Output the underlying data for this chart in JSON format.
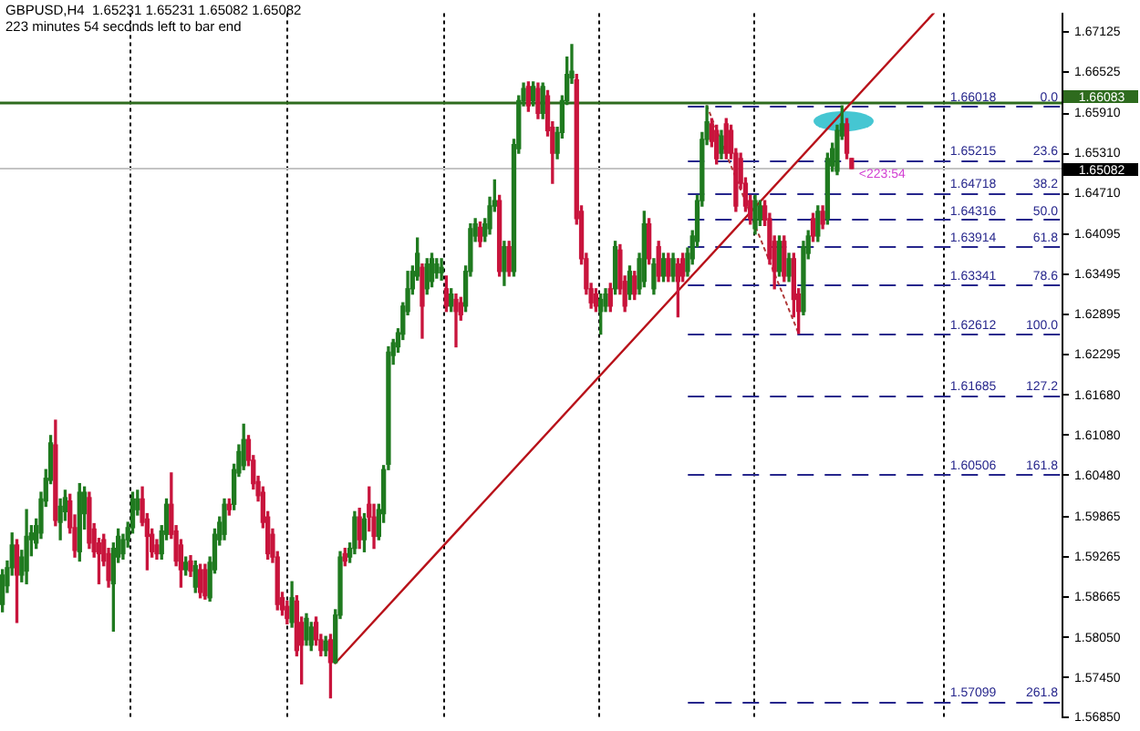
{
  "chart_data": {
    "type": "candlestick",
    "title": "GBPUSD,H4  1.65231 1.65231 1.65082 1.65082",
    "subtitle": "223 minutes 54 seconds left to bar end",
    "categories": [
      null,
      null,
      null,
      null,
      null,
      null,
      null,
      null,
      null,
      null,
      null,
      null,
      null,
      null,
      null,
      null,
      null,
      null,
      null,
      null,
      null,
      null,
      null,
      null,
      null,
      null,
      null,
      null,
      null,
      null,
      null,
      null,
      null,
      null,
      null,
      null,
      null,
      null,
      null,
      null,
      null,
      null,
      null,
      null,
      null,
      null,
      null,
      null,
      null,
      null,
      null,
      null,
      null,
      null,
      null,
      null,
      null,
      null,
      null,
      null,
      null,
      null,
      null,
      null,
      null,
      null,
      null,
      null,
      null,
      null,
      null,
      null,
      null,
      null,
      null,
      null,
      null,
      null,
      null,
      null,
      null,
      null,
      null,
      null,
      null,
      null,
      null,
      null,
      null,
      null,
      null,
      null,
      null,
      null,
      null,
      null,
      null,
      null,
      null,
      null,
      null,
      null,
      null,
      null,
      null,
      null,
      null,
      null,
      null,
      null,
      null,
      null,
      null,
      null,
      null,
      null,
      null,
      null,
      null,
      null,
      null,
      null,
      null,
      null,
      null,
      null,
      null,
      null,
      null,
      null,
      null,
      null,
      null,
      null,
      null,
      null,
      null,
      null,
      null,
      null,
      null,
      null,
      null,
      null,
      null,
      null,
      null,
      null,
      null,
      null,
      null,
      null,
      null,
      null,
      null,
      null,
      null,
      null,
      null,
      null,
      null,
      null,
      null,
      null,
      null,
      null,
      null,
      null,
      null,
      null,
      null,
      null,
      null,
      null,
      null,
      null,
      null,
      null,
      null,
      null,
      null,
      null,
      null,
      null,
      null,
      null,
      null,
      null,
      null,
      null,
      null,
      null,
      null,
      null,
      null,
      null,
      null,
      null,
      null,
      null,
      null,
      null,
      null,
      null,
      null,
      null,
      null,
      null,
      null,
      null,
      null,
      null,
      null,
      null,
      null,
      null,
      null,
      null,
      null,
      null
    ],
    "ohlc": [
      [
        1.5855,
        1.5907,
        1.5844,
        1.5899
      ],
      [
        1.5883,
        1.592,
        1.5873,
        1.591
      ],
      [
        1.591,
        1.5962,
        1.5899,
        1.5944
      ],
      [
        1.5944,
        1.5952,
        1.5828,
        1.5899
      ],
      [
        1.5899,
        1.5936,
        1.5889,
        1.5926
      ],
      [
        1.5905,
        1.5997,
        1.5886,
        1.5957
      ],
      [
        1.5952,
        1.5973,
        1.5928,
        1.5962
      ],
      [
        1.5947,
        1.5983,
        1.5939,
        1.5973
      ],
      [
        1.5962,
        1.6023,
        1.5954,
        1.6013
      ],
      [
        1.601,
        1.6057,
        1.6002,
        1.6044
      ],
      [
        1.6041,
        1.6108,
        1.6036,
        1.6097
      ],
      [
        1.6094,
        1.6131,
        1.5973,
        1.5981
      ],
      [
        1.5978,
        1.6013,
        1.5952,
        1.6002
      ],
      [
        1.5994,
        1.6026,
        1.5981,
        1.6015
      ],
      [
        1.601,
        1.602,
        1.5962,
        1.597
      ],
      [
        1.597,
        1.5989,
        1.5926,
        1.5936
      ],
      [
        1.5934,
        1.6036,
        1.592,
        1.6023
      ],
      [
        1.5991,
        1.6031,
        1.5968,
        1.6023
      ],
      [
        1.6015,
        1.6023,
        1.5939,
        1.5947
      ],
      [
        1.5968,
        1.5976,
        1.5926,
        1.5934
      ],
      [
        1.5947,
        1.5954,
        1.5886,
        1.5931
      ],
      [
        1.5952,
        1.596,
        1.5913,
        1.592
      ],
      [
        1.5931,
        1.5939,
        1.5881,
        1.5891
      ],
      [
        1.5886,
        1.5947,
        1.5815,
        1.5939
      ],
      [
        1.5926,
        1.5968,
        1.5918,
        1.5957
      ],
      [
        1.5931,
        1.596,
        1.5923,
        1.5952
      ],
      [
        1.5952,
        1.5978,
        1.5941,
        1.597
      ],
      [
        1.597,
        1.6023,
        1.5962,
        1.6013
      ],
      [
        1.5997,
        1.6026,
        1.5989,
        1.6013
      ],
      [
        1.6013,
        1.6031,
        1.5973,
        1.5978
      ],
      [
        1.5983,
        1.5991,
        1.5907,
        1.5957
      ],
      [
        1.596,
        1.5968,
        1.5926,
        1.5934
      ],
      [
        1.5944,
        1.5952,
        1.5923,
        1.5931
      ],
      [
        1.5931,
        1.5973,
        1.5923,
        1.5965
      ],
      [
        1.596,
        1.6013,
        1.5952,
        1.6005
      ],
      [
        1.6005,
        1.6052,
        1.5954,
        1.596
      ],
      [
        1.5965,
        1.5973,
        1.5913,
        1.592
      ],
      [
        1.5944,
        1.5952,
        1.5881,
        1.5907
      ],
      [
        1.5907,
        1.5926,
        1.5899,
        1.5918
      ],
      [
        1.592,
        1.5928,
        1.5897,
        1.5905
      ],
      [
        1.5881,
        1.592,
        1.5873,
        1.5913
      ],
      [
        1.5907,
        1.5915,
        1.5865,
        1.5873
      ],
      [
        1.5907,
        1.5915,
        1.5863,
        1.5868
      ],
      [
        1.5865,
        1.5926,
        1.586,
        1.5918
      ],
      [
        1.5907,
        1.5968,
        1.5902,
        1.596
      ],
      [
        1.5952,
        1.5986,
        1.5944,
        1.5978
      ],
      [
        1.596,
        1.6013,
        1.5952,
        1.6005
      ],
      [
        1.6005,
        1.6013,
        1.5989,
        1.5997
      ],
      [
        1.6005,
        1.6065,
        1.5997,
        1.6057
      ],
      [
        1.6052,
        1.6094,
        1.6047,
        1.6084
      ],
      [
        1.6063,
        1.6125,
        1.6057,
        1.6102
      ],
      [
        1.6102,
        1.6108,
        1.6063,
        1.6071
      ],
      [
        1.6071,
        1.6078,
        1.6028,
        1.6036
      ],
      [
        1.6039,
        1.6047,
        1.601,
        1.6018
      ],
      [
        1.6023,
        1.6031,
        1.597,
        1.5978
      ],
      [
        1.5986,
        1.5994,
        1.5923,
        1.5931
      ],
      [
        1.596,
        1.5968,
        1.5918,
        1.5926
      ],
      [
        1.5926,
        1.5934,
        1.5847,
        1.5855
      ],
      [
        1.5865,
        1.5873,
        1.5839,
        1.5847
      ],
      [
        1.5852,
        1.586,
        1.5826,
        1.5834
      ],
      [
        1.5828,
        1.5889,
        1.5821,
        1.5865
      ],
      [
        1.586,
        1.5868,
        1.5778,
        1.5786
      ],
      [
        1.5828,
        1.5836,
        1.5736,
        1.5794
      ],
      [
        1.5802,
        1.5841,
        1.5794,
        1.5834
      ],
      [
        1.5794,
        1.5828,
        1.5786,
        1.5821
      ],
      [
        1.5828,
        1.5836,
        1.5794,
        1.5802
      ],
      [
        1.5802,
        1.581,
        1.5778,
        1.5786
      ],
      [
        1.5786,
        1.5807,
        1.5778,
        1.58
      ],
      [
        1.5802,
        1.581,
        1.5715,
        1.5768
      ],
      [
        1.5768,
        1.5847,
        1.5767,
        1.5839
      ],
      [
        1.5839,
        1.5934,
        1.5834,
        1.5926
      ],
      [
        1.5931,
        1.5939,
        1.5913,
        1.592
      ],
      [
        1.5926,
        1.5947,
        1.5918,
        1.5939
      ],
      [
        1.5939,
        1.5994,
        1.5931,
        1.5986
      ],
      [
        1.5986,
        1.5999,
        1.5939,
        1.5952
      ],
      [
        1.5952,
        1.5991,
        1.5934,
        1.5983
      ],
      [
        1.6005,
        1.6031,
        1.5965,
        1.5986
      ],
      [
        1.5986,
        1.6005,
        1.5939,
        1.5957
      ],
      [
        1.5957,
        1.6005,
        1.5952,
        1.5997
      ],
      [
        1.5991,
        1.6063,
        1.5978,
        1.6057
      ],
      [
        1.6065,
        1.6241,
        1.6057,
        1.6233
      ],
      [
        1.6228,
        1.6252,
        1.6215,
        1.6247
      ],
      [
        1.6241,
        1.6268,
        1.6233,
        1.6262
      ],
      [
        1.626,
        1.6307,
        1.6252,
        1.6302
      ],
      [
        1.6294,
        1.6354,
        1.6289,
        1.6328
      ],
      [
        1.6328,
        1.6362,
        1.632,
        1.6354
      ],
      [
        1.6347,
        1.6404,
        1.6341,
        1.6381
      ],
      [
        1.636,
        1.6365,
        1.6254,
        1.6302
      ],
      [
        1.6328,
        1.6373,
        1.632,
        1.6365
      ],
      [
        1.6339,
        1.6381,
        1.6331,
        1.6373
      ],
      [
        1.6352,
        1.6373,
        1.6344,
        1.6365
      ],
      [
        1.6352,
        1.6373,
        1.6341,
        1.636
      ],
      [
        1.6328,
        1.6347,
        1.6294,
        1.6302
      ],
      [
        1.6302,
        1.6328,
        1.6294,
        1.632
      ],
      [
        1.6312,
        1.632,
        1.6241,
        1.6294
      ],
      [
        1.6307,
        1.6315,
        1.6281,
        1.6289
      ],
      [
        1.6302,
        1.6362,
        1.6294,
        1.6354
      ],
      [
        1.6354,
        1.6425,
        1.6347,
        1.6418
      ],
      [
        1.6407,
        1.6433,
        1.6399,
        1.6425
      ],
      [
        1.642,
        1.6428,
        1.6391,
        1.6399
      ],
      [
        1.6407,
        1.6433,
        1.6399,
        1.6425
      ],
      [
        1.6418,
        1.6465,
        1.641,
        1.6452
      ],
      [
        1.6452,
        1.6491,
        1.6444,
        1.646
      ],
      [
        1.646,
        1.6468,
        1.6347,
        1.6354
      ],
      [
        1.6354,
        1.6399,
        1.6333,
        1.6391
      ],
      [
        1.6391,
        1.6399,
        1.6347,
        1.6354
      ],
      [
        1.6354,
        1.6552,
        1.6347,
        1.6544
      ],
      [
        1.6538,
        1.6617,
        1.6531,
        1.661
      ],
      [
        1.661,
        1.6636,
        1.6602,
        1.6628
      ],
      [
        1.6631,
        1.6638,
        1.6594,
        1.6602
      ],
      [
        1.661,
        1.6638,
        1.6602,
        1.6631
      ],
      [
        1.6628,
        1.6636,
        1.6583,
        1.6591
      ],
      [
        1.6591,
        1.6636,
        1.6583,
        1.6631
      ],
      [
        1.6617,
        1.6625,
        1.6557,
        1.6565
      ],
      [
        1.657,
        1.6578,
        1.6486,
        1.6531
      ],
      [
        1.6531,
        1.657,
        1.6523,
        1.6562
      ],
      [
        1.6562,
        1.6617,
        1.6554,
        1.661
      ],
      [
        1.661,
        1.6675,
        1.6604,
        1.6649
      ],
      [
        1.6644,
        1.6694,
        1.6636,
        1.6654
      ],
      [
        1.6641,
        1.6649,
        1.6425,
        1.6433
      ],
      [
        1.6444,
        1.6452,
        1.6365,
        1.6373
      ],
      [
        1.6373,
        1.6381,
        1.632,
        1.6328
      ],
      [
        1.6328,
        1.6336,
        1.6299,
        1.6307
      ],
      [
        1.632,
        1.6328,
        1.6294,
        1.6302
      ],
      [
        1.6294,
        1.632,
        1.626,
        1.6312
      ],
      [
        1.6302,
        1.6328,
        1.6294,
        1.632
      ],
      [
        1.6328,
        1.6336,
        1.6294,
        1.6302
      ],
      [
        1.6328,
        1.6399,
        1.632,
        1.6391
      ],
      [
        1.6386,
        1.6394,
        1.632,
        1.6328
      ],
      [
        1.6339,
        1.6347,
        1.6294,
        1.6302
      ],
      [
        1.632,
        1.6362,
        1.6312,
        1.6354
      ],
      [
        1.6347,
        1.6354,
        1.6312,
        1.632
      ],
      [
        1.6328,
        1.6381,
        1.632,
        1.6373
      ],
      [
        1.6339,
        1.6444,
        1.6331,
        1.6425
      ],
      [
        1.6425,
        1.6433,
        1.6365,
        1.6373
      ],
      [
        1.6328,
        1.6373,
        1.632,
        1.6365
      ],
      [
        1.6391,
        1.6399,
        1.6339,
        1.6347
      ],
      [
        1.6347,
        1.6381,
        1.6339,
        1.6373
      ],
      [
        1.6373,
        1.6381,
        1.6339,
        1.6347
      ],
      [
        1.6347,
        1.6381,
        1.6339,
        1.6373
      ],
      [
        1.6365,
        1.6373,
        1.6286,
        1.6339
      ],
      [
        1.6373,
        1.6381,
        1.6339,
        1.6347
      ],
      [
        1.6354,
        1.6389,
        1.6347,
        1.6381
      ],
      [
        1.6373,
        1.6415,
        1.6365,
        1.6407
      ],
      [
        1.6399,
        1.6468,
        1.6391,
        1.646
      ],
      [
        1.646,
        1.6562,
        1.6452,
        1.6552
      ],
      [
        1.6552,
        1.6602,
        1.6544,
        1.6578
      ],
      [
        1.6575,
        1.6583,
        1.6541,
        1.6549
      ],
      [
        1.6565,
        1.6573,
        1.6515,
        1.6523
      ],
      [
        1.6531,
        1.6565,
        1.6523,
        1.6557
      ],
      [
        1.6575,
        1.6583,
        1.6523,
        1.6531
      ],
      [
        1.6565,
        1.6573,
        1.6523,
        1.6531
      ],
      [
        1.6531,
        1.6538,
        1.6444,
        1.6452
      ],
      [
        1.6523,
        1.6531,
        1.6478,
        1.6486
      ],
      [
        1.6486,
        1.6494,
        1.6444,
        1.6452
      ],
      [
        1.646,
        1.6468,
        1.6425,
        1.6433
      ],
      [
        1.6418,
        1.6468,
        1.641,
        1.646
      ],
      [
        1.6431,
        1.646,
        1.6423,
        1.6452
      ],
      [
        1.6452,
        1.646,
        1.6423,
        1.6431
      ],
      [
        1.6433,
        1.6441,
        1.6365,
        1.6373
      ],
      [
        1.6399,
        1.6407,
        1.6328,
        1.6354
      ],
      [
        1.6354,
        1.6407,
        1.6347,
        1.6399
      ],
      [
        1.6399,
        1.6407,
        1.6339,
        1.6347
      ],
      [
        1.6347,
        1.6381,
        1.6339,
        1.6373
      ],
      [
        1.6373,
        1.6381,
        1.6286,
        1.6312
      ],
      [
        1.632,
        1.6328,
        1.6261,
        1.6294
      ],
      [
        1.6294,
        1.6399,
        1.6289,
        1.6391
      ],
      [
        1.6381,
        1.6415,
        1.6373,
        1.6407
      ],
      [
        1.6433,
        1.6441,
        1.6399,
        1.6407
      ],
      [
        1.6407,
        1.6452,
        1.6399,
        1.6444
      ],
      [
        1.6444,
        1.6452,
        1.6418,
        1.6425
      ],
      [
        1.6433,
        1.6531,
        1.6425,
        1.6523
      ],
      [
        1.6512,
        1.6546,
        1.6504,
        1.6538
      ],
      [
        1.6504,
        1.6573,
        1.6499,
        1.6565
      ],
      [
        1.6557,
        1.6602,
        1.6552,
        1.6575
      ],
      [
        1.6575,
        1.6583,
        1.6523,
        1.6531
      ],
      [
        1.65231,
        1.65231,
        1.65082,
        1.65082
      ],
      null,
      null,
      null,
      null,
      null,
      null,
      null,
      null,
      null,
      null,
      null,
      null,
      null,
      null,
      null,
      null,
      null,
      null,
      null,
      null,
      null,
      null,
      null,
      null,
      null,
      null,
      null,
      null,
      null,
      null,
      null,
      null,
      null,
      null,
      null,
      null,
      null,
      null,
      null,
      null,
      null,
      null,
      null
    ],
    "colors": [
      "#1f7a1f",
      "#1f7a1f",
      "#1f7a1f",
      "#c8143c",
      "#1f7a1f",
      "#1f7a1f",
      "#1f7a1f",
      "#1f7a1f",
      "#1f7a1f",
      "#1f7a1f",
      "#1f7a1f",
      "#c8143c",
      "#1f7a1f",
      "#1f7a1f",
      "#c8143c",
      "#c8143c",
      "#1f7a1f",
      "#1f7a1f",
      "#c8143c",
      "#c8143c",
      "#c8143c",
      "#c8143c",
      "#c8143c",
      "#1f7a1f",
      "#1f7a1f",
      "#1f7a1f",
      "#1f7a1f",
      "#1f7a1f",
      "#1f7a1f",
      "#c8143c",
      "#c8143c",
      "#c8143c",
      "#c8143c",
      "#1f7a1f",
      "#1f7a1f",
      "#c8143c",
      "#c8143c",
      "#c8143c",
      "#1f7a1f",
      "#c8143c",
      "#1f7a1f",
      "#c8143c",
      "#c8143c",
      "#1f7a1f",
      "#1f7a1f",
      "#1f7a1f",
      "#1f7a1f",
      "#c8143c",
      "#1f7a1f",
      "#1f7a1f",
      "#1f7a1f",
      "#c8143c",
      "#c8143c",
      "#c8143c",
      "#c8143c",
      "#c8143c",
      "#c8143c",
      "#c8143c",
      "#c8143c",
      "#c8143c",
      "#1f7a1f",
      "#c8143c",
      "#c8143c",
      "#1f7a1f",
      "#1f7a1f",
      "#c8143c",
      "#c8143c",
      "#1f7a1f",
      "#c8143c",
      "#1f7a1f",
      "#1f7a1f",
      "#c8143c",
      "#1f7a1f",
      "#1f7a1f",
      "#c8143c",
      "#1f7a1f",
      "#c8143c",
      "#c8143c",
      "#1f7a1f",
      "#1f7a1f",
      "#1f7a1f",
      "#1f7a1f",
      "#1f7a1f",
      "#1f7a1f",
      "#1f7a1f",
      "#1f7a1f",
      "#1f7a1f",
      "#c8143c",
      "#1f7a1f",
      "#1f7a1f",
      "#1f7a1f",
      "#1f7a1f",
      "#c8143c",
      "#1f7a1f",
      "#c8143c",
      "#c8143c",
      "#1f7a1f",
      "#1f7a1f",
      "#1f7a1f",
      "#c8143c",
      "#1f7a1f",
      "#1f7a1f",
      "#1f7a1f",
      "#c8143c",
      "#1f7a1f",
      "#c8143c",
      "#1f7a1f",
      "#1f7a1f",
      "#1f7a1f",
      "#c8143c",
      "#1f7a1f",
      "#c8143c",
      "#1f7a1f",
      "#c8143c",
      "#c8143c",
      "#1f7a1f",
      "#1f7a1f",
      "#1f7a1f",
      "#1f7a1f",
      "#c8143c",
      "#c8143c",
      "#c8143c",
      "#c8143c",
      "#c8143c",
      "#1f7a1f",
      "#1f7a1f",
      "#c8143c",
      "#1f7a1f",
      "#c8143c",
      "#c8143c",
      "#1f7a1f",
      "#c8143c",
      "#1f7a1f",
      "#1f7a1f",
      "#c8143c",
      "#1f7a1f",
      "#c8143c",
      "#1f7a1f",
      "#c8143c",
      "#1f7a1f",
      "#c8143c",
      "#c8143c",
      "#1f7a1f",
      "#1f7a1f",
      "#1f7a1f",
      "#1f7a1f",
      "#1f7a1f",
      "#c8143c",
      "#c8143c",
      "#1f7a1f",
      "#c8143c",
      "#c8143c",
      "#c8143c",
      "#c8143c",
      "#c8143c",
      "#c8143c",
      "#1f7a1f",
      "#1f7a1f",
      "#c8143c",
      "#c8143c",
      "#c8143c",
      "#1f7a1f",
      "#c8143c",
      "#1f7a1f",
      "#c8143c",
      "#c8143c",
      "#1f7a1f",
      "#1f7a1f",
      "#c8143c",
      "#1f7a1f",
      "#c8143c",
      "#1f7a1f",
      "#1f7a1f",
      "#1f7a1f",
      "#1f7a1f",
      "#c8143c",
      "#c8143c",
      null,
      null,
      null,
      null,
      null,
      null,
      null,
      null,
      null,
      null,
      null,
      null,
      null,
      null,
      null,
      null,
      null,
      null,
      null,
      null,
      null,
      null,
      null,
      null,
      null,
      null,
      null,
      null,
      null,
      null,
      null,
      null,
      null,
      null,
      null,
      null,
      null,
      null,
      null,
      null,
      null,
      null,
      null
    ],
    "series": [
      {
        "type": "line",
        "color": "#b8121a",
        "values": [
          null,
          null,
          null,
          null,
          null,
          null,
          null,
          null,
          null,
          null,
          null,
          null,
          null,
          null,
          null,
          null,
          null,
          null,
          null,
          null,
          null,
          null,
          null,
          null,
          null,
          null,
          null,
          null,
          null,
          null,
          null,
          null,
          null,
          null,
          null,
          null,
          null,
          null,
          null,
          null,
          null,
          null,
          null,
          null,
          null,
          null,
          null,
          null,
          null,
          null,
          null,
          null,
          null,
          null,
          null,
          null,
          null,
          null,
          null,
          null,
          null,
          null,
          null,
          null,
          null,
          null,
          null,
          null,
          null,
          1.5767,
          null,
          null,
          null,
          null,
          null,
          null,
          null,
          null,
          null,
          null,
          null,
          null,
          null,
          null,
          null,
          null,
          null,
          null,
          null,
          null,
          null,
          null,
          null,
          null,
          null,
          null,
          null,
          null,
          null,
          null,
          null,
          null,
          null,
          null,
          null,
          null,
          null,
          null,
          null,
          null,
          null,
          null,
          null,
          null,
          null,
          null,
          null,
          null,
          null,
          null,
          null,
          null,
          null,
          null,
          null,
          null,
          null,
          null,
          null,
          null,
          null,
          null,
          null,
          null,
          null,
          null,
          null,
          null,
          null,
          null,
          null,
          null,
          null,
          null,
          null,
          null,
          null,
          null,
          null,
          null,
          null,
          null,
          null,
          null,
          null,
          null,
          null,
          null,
          null,
          null,
          null,
          null,
          null,
          null,
          null,
          null,
          null,
          null,
          null,
          null,
          null,
          null,
          null,
          null,
          null,
          null,
          null,
          null,
          null,
          null,
          null,
          null,
          null,
          null,
          null,
          null,
          null,
          null,
          null,
          null,
          null,
          null,
          null,
          1.6741,
          null,
          null,
          null,
          null,
          null,
          null,
          null,
          null,
          null,
          null,
          null,
          null,
          null,
          null,
          null,
          null,
          null,
          null,
          null,
          null,
          null,
          null,
          null,
          null,
          null,
          null
        ]
      },
      {
        "type": "line",
        "color": "#b03a3a",
        "line_style": "dotted",
        "values": [
          null,
          null,
          null,
          null,
          null,
          null,
          null,
          null,
          null,
          null,
          null,
          null,
          null,
          null,
          null,
          null,
          null,
          null,
          null,
          null,
          null,
          null,
          null,
          null,
          null,
          null,
          null,
          null,
          null,
          null,
          null,
          null,
          null,
          null,
          null,
          null,
          null,
          null,
          null,
          null,
          null,
          null,
          null,
          null,
          null,
          null,
          null,
          null,
          null,
          null,
          null,
          null,
          null,
          null,
          null,
          null,
          null,
          null,
          null,
          null,
          null,
          null,
          null,
          null,
          null,
          null,
          null,
          null,
          null,
          null,
          null,
          null,
          null,
          null,
          null,
          null,
          null,
          null,
          null,
          null,
          null,
          null,
          null,
          null,
          null,
          null,
          null,
          null,
          null,
          null,
          null,
          null,
          null,
          null,
          null,
          null,
          null,
          null,
          null,
          null,
          null,
          null,
          null,
          null,
          null,
          null,
          null,
          null,
          null,
          null,
          null,
          null,
          null,
          null,
          null,
          null,
          null,
          null,
          null,
          null,
          null,
          null,
          null,
          null,
          null,
          null,
          null,
          null,
          null,
          null,
          null,
          null,
          null,
          null,
          null,
          null,
          null,
          null,
          null,
          null,
          null,
          null,
          null,
          null,
          null,
          null,
          1.6602,
          null,
          null,
          null,
          null,
          null,
          null,
          null,
          null,
          null,
          null,
          null,
          null,
          null,
          null,
          null,
          null,
          null,
          null,
          1.6261,
          null,
          null,
          null,
          null,
          null,
          null,
          null,
          null,
          null,
          null,
          null,
          null,
          null,
          null,
          null,
          null,
          null,
          null,
          null,
          null,
          null,
          null,
          null,
          null,
          null,
          null,
          null,
          null,
          null,
          null,
          null,
          null,
          null,
          null,
          null,
          null,
          null,
          null,
          null,
          null,
          null,
          null,
          null,
          null,
          null,
          null,
          null,
          null,
          null,
          null,
          null,
          null,
          null,
          null
        ]
      }
    ],
    "ylim": [
      1.5685,
      1.6741
    ],
    "yticks": [
      1.67125,
      1.66525,
      {
        "value": 1.6591,
        "label": "1.65910"
      },
      {
        "value": 1.6531,
        "label": "1.65310"
      },
      {
        "value": 1.6471,
        "label": "1.64710"
      },
      1.64095,
      1.63495,
      1.62895,
      1.62295,
      {
        "value": 1.6168,
        "label": "1.61680"
      },
      {
        "value": 1.6108,
        "label": "1.61080"
      },
      {
        "value": 1.6048,
        "label": "1.60480"
      },
      1.59865,
      1.59265,
      1.58665,
      {
        "value": 1.5805,
        "label": "1.58050"
      },
      {
        "value": 1.5745,
        "label": "1.57450"
      },
      {
        "value": 1.5685,
        "label": "1.56850"
      }
    ],
    "tick_labels": "y",
    "ref_lines": [
      {
        "axis": "y",
        "value": 1.66083,
        "label": "1.66083",
        "color": "#2e6b1e",
        "line_style": "solid"
      },
      {
        "axis": "y",
        "value": 1.65082,
        "label": "1.65082",
        "color": "#c4c4c4",
        "line_style": "solid"
      },
      {
        "axis": "y",
        "value": 1.66018,
        "label": "1.66018",
        "color": "#26268c",
        "line_style": "dashed"
      },
      {
        "axis": "y",
        "value": 1.65215,
        "label": "1.65215",
        "color": "#26268c",
        "line_style": "dashed"
      },
      {
        "axis": "y",
        "value": 1.64718,
        "label": "1.64718",
        "color": "#26268c",
        "line_style": "dashed"
      },
      {
        "axis": "y",
        "value": 1.64316,
        "label": "1.64316",
        "color": "#26268c",
        "line_style": "dashed"
      },
      {
        "axis": "y",
        "value": 1.63914,
        "label": "1.63914",
        "color": "#26268c",
        "line_style": "dashed"
      },
      {
        "axis": "y",
        "value": 1.63341,
        "label": "1.63341",
        "color": "#26268c",
        "line_style": "dashed"
      },
      {
        "axis": "y",
        "value": 1.62612,
        "label": "1.62612",
        "color": "#26268c",
        "line_style": "dashed"
      },
      {
        "axis": "y",
        "value": 1.61685,
        "label": "1.61685",
        "color": "#26268c",
        "line_style": "dashed"
      },
      {
        "axis": "y",
        "value": 1.60506,
        "label": "1.60506",
        "color": "#26268c",
        "line_style": "dashed"
      },
      {
        "axis": "y",
        "value": 1.57099,
        "label": "1.57099",
        "color": "#26268c",
        "line_style": "dashed"
      }
    ],
    "annotations": [
      {
        "text": "0.0",
        "y": 1.66018
      },
      {
        "text": "23.6",
        "y": 1.65215
      },
      {
        "text": "38.2",
        "y": 1.64718
      },
      {
        "text": "50.0",
        "y": 1.64316
      },
      {
        "text": "61.8",
        "y": 1.63914
      },
      {
        "text": "78.6",
        "y": 1.63341
      },
      {
        "text": "100.0",
        "y": 1.62612
      },
      {
        "text": "127.2",
        "y": 1.61685
      },
      {
        "text": "161.8",
        "y": 1.60506
      },
      {
        "text": "261.8",
        "y": 1.57099
      },
      "<223:54"
    ]
  }
}
